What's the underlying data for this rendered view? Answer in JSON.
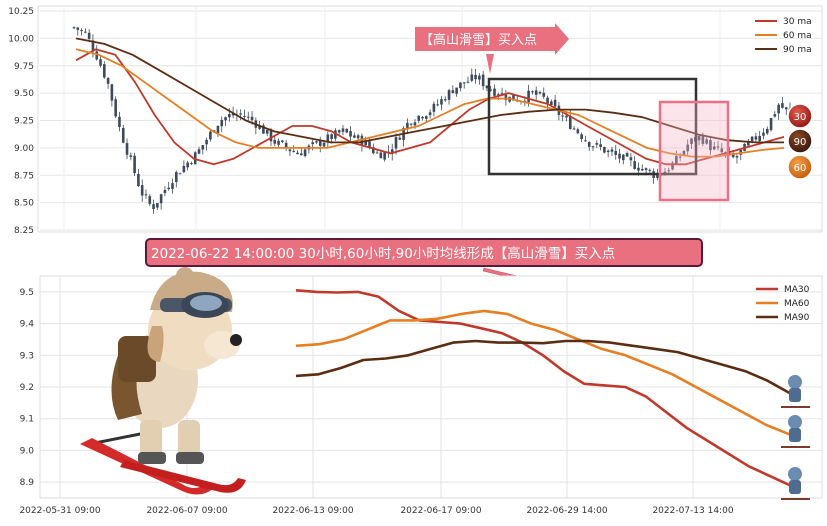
{
  "colors": {
    "ma30": "#c0392b",
    "ma60": "#e67e22",
    "ma90": "#5b2d12",
    "candle": "#3d4a5c",
    "banner_fill": "#e8707f",
    "box_dark": "#333333",
    "box_pink": "#f5b5c3"
  },
  "top_callout": "【高山滑雪】买入点",
  "banner": "2022-06-22 14:00:00 30小时,60小时,90小时均线形成【高山滑雪】买入点",
  "badges": [
    "30",
    "90",
    "60"
  ],
  "chart_data": [
    {
      "type": "line",
      "panel": "top",
      "ylim": [
        8.25,
        10.25
      ],
      "y_ticks": [
        "10.25",
        "10.00",
        "9.75",
        "9.50",
        "9.25",
        "9.00",
        "8.75",
        "8.50",
        "8.25"
      ],
      "legend_position": "top-right",
      "grid": true,
      "candles_close": [
        10.1,
        10.05,
        9.85,
        9.6,
        9.2,
        8.9,
        8.6,
        8.45,
        8.6,
        8.75,
        8.85,
        8.95,
        9.1,
        9.25,
        9.3,
        9.3,
        9.25,
        9.15,
        9.05,
        9.0,
        8.95,
        9.0,
        9.05,
        9.1,
        9.15,
        9.1,
        9.05,
        8.95,
        8.95,
        9.1,
        9.25,
        9.3,
        9.35,
        9.45,
        9.55,
        9.6,
        9.65,
        9.55,
        9.5,
        9.45,
        9.45,
        9.5,
        9.45,
        9.35,
        9.25,
        9.15,
        9.05,
        9.0,
        8.95,
        8.9,
        8.85,
        8.8,
        8.75,
        8.8,
        8.9,
        9.05,
        9.1,
        9.0,
        8.95,
        8.9,
        9.0,
        9.1,
        9.2,
        9.4,
        9.3
      ],
      "series": [
        {
          "name": "30 ma",
          "values": [
            9.8,
            9.9,
            9.85,
            9.6,
            9.3,
            9.05,
            8.9,
            8.85,
            8.9,
            9.0,
            9.1,
            9.2,
            9.2,
            9.15,
            9.05,
            9.0,
            8.95,
            9.0,
            9.05,
            9.2,
            9.35,
            9.45,
            9.5,
            9.45,
            9.4,
            9.3,
            9.2,
            9.1,
            9.0,
            8.9,
            8.85,
            8.85,
            8.9,
            8.95,
            9.0,
            9.05,
            9.1
          ]
        },
        {
          "name": "60 ma",
          "values": [
            9.9,
            9.85,
            9.75,
            9.6,
            9.45,
            9.3,
            9.15,
            9.05,
            9.0,
            9.0,
            9.0,
            9.0,
            9.05,
            9.1,
            9.15,
            9.2,
            9.3,
            9.4,
            9.45,
            9.45,
            9.4,
            9.35,
            9.3,
            9.2,
            9.1,
            9.0,
            8.95,
            8.92,
            8.92,
            8.95,
            8.98,
            9.0
          ]
        },
        {
          "name": "90 ma",
          "values": [
            10.0,
            9.95,
            9.85,
            9.7,
            9.55,
            9.4,
            9.25,
            9.15,
            9.1,
            9.05,
            9.05,
            9.1,
            9.15,
            9.2,
            9.25,
            9.3,
            9.33,
            9.35,
            9.35,
            9.32,
            9.28,
            9.2,
            9.12,
            9.07,
            9.05,
            9.05
          ]
        }
      ]
    },
    {
      "type": "line",
      "panel": "bottom",
      "ylim": [
        8.85,
        9.55
      ],
      "y_ticks": [
        "9.5",
        "9.4",
        "9.3",
        "9.2",
        "9.1",
        "9.0",
        "8.9"
      ],
      "x_ticks": [
        "2022-05-31 09:00",
        "2022-06-07 09:00",
        "2022-06-13 09:00",
        "2022-06-17 09:00",
        "2022-06-29 14:00",
        "2022-07-13 14:00"
      ],
      "legend_position": "top-right",
      "grid": true,
      "series": [
        {
          "name": "MA30",
          "values": [
            9.505,
            9.5,
            9.498,
            9.5,
            9.485,
            9.44,
            9.41,
            9.405,
            9.4,
            9.385,
            9.37,
            9.34,
            9.3,
            9.25,
            9.21,
            9.205,
            9.2,
            9.17,
            9.12,
            9.07,
            9.03,
            8.99,
            8.95,
            8.92,
            8.89
          ]
        },
        {
          "name": "MA60",
          "values": [
            9.33,
            9.335,
            9.35,
            9.38,
            9.41,
            9.41,
            9.415,
            9.43,
            9.44,
            9.43,
            9.4,
            9.38,
            9.35,
            9.32,
            9.3,
            9.27,
            9.24,
            9.2,
            9.16,
            9.12,
            9.08,
            9.05
          ]
        },
        {
          "name": "MA90",
          "values": [
            9.235,
            9.24,
            9.26,
            9.285,
            9.29,
            9.3,
            9.32,
            9.34,
            9.345,
            9.34,
            9.34,
            9.338,
            9.345,
            9.345,
            9.34,
            9.33,
            9.32,
            9.31,
            9.29,
            9.27,
            9.25,
            9.22,
            9.18
          ]
        }
      ]
    }
  ]
}
